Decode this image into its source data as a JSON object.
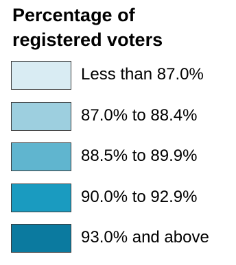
{
  "legend": {
    "title": "Percentage of\nregistered voters",
    "items": [
      {
        "label": "Less than 87.0%",
        "color": "#d9ecf3"
      },
      {
        "label": "87.0% to 88.4%",
        "color": "#9dcfdf"
      },
      {
        "label": "88.5% to 89.9%",
        "color": "#60b5cf"
      },
      {
        "label": "90.0% to 92.9%",
        "color": "#1a9bc0"
      },
      {
        "label": "93.0% and above",
        "color": "#0b7a9f"
      }
    ]
  }
}
